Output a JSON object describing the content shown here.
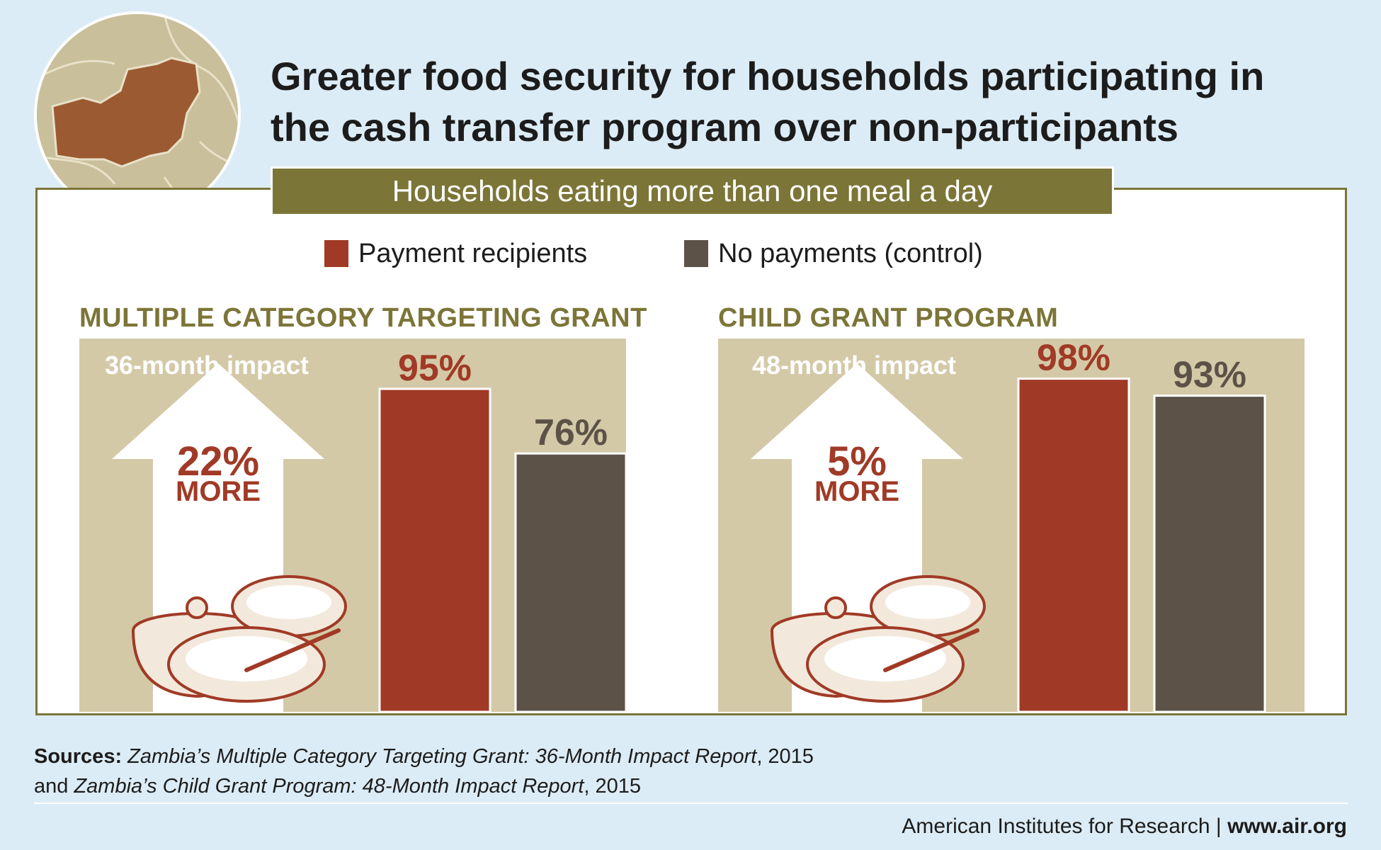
{
  "title": {
    "line1": "Greater food security for households participating in",
    "line2": "the cash transfer program over non-participants"
  },
  "subtitle": "Households eating more than one meal a day",
  "legend": [
    {
      "label": "Payment recipients",
      "color": "#a03a26"
    },
    {
      "label": "No payments (control)",
      "color": "#5c5248"
    }
  ],
  "chart_data": [
    {
      "type": "bar",
      "title": "MULTIPLE CATEGORY TARGETING GRANT",
      "impact_label": "36-month impact",
      "difference": "22%",
      "difference_suffix": "MORE",
      "categories": [
        "Payment recipients",
        "No payments (control)"
      ],
      "values": [
        95,
        76
      ],
      "value_labels": [
        "95%",
        "76%"
      ],
      "ylim": [
        0,
        100
      ],
      "unit": "%"
    },
    {
      "type": "bar",
      "title": "CHILD GRANT PROGRAM",
      "impact_label": "48-month impact",
      "difference": "5%",
      "difference_suffix": "MORE",
      "categories": [
        "Payment recipients",
        "No payments (control)"
      ],
      "values": [
        98,
        93
      ],
      "value_labels": [
        "98%",
        "93%"
      ],
      "ylim": [
        0,
        100
      ],
      "unit": "%"
    }
  ],
  "sources": {
    "label": "Sources:",
    "ref1_title": "Zambia’s Multiple Category Targeting Grant: 36-Month Impact Report",
    "ref1_year": ", 2015",
    "connector": "and ",
    "ref2_title": "Zambia’s Child Grant Program: 48-Month Impact Report",
    "ref2_year": ", 2015"
  },
  "footer": {
    "org": "American Institutes for Research",
    "separator": " | ",
    "url": "www.air.org"
  },
  "colors": {
    "accent_olive": "#7c7538",
    "recipients": "#a03a26",
    "control": "#5c5248",
    "panel_bg": "#d4c9a7",
    "page_bg": "#dcecf6"
  }
}
